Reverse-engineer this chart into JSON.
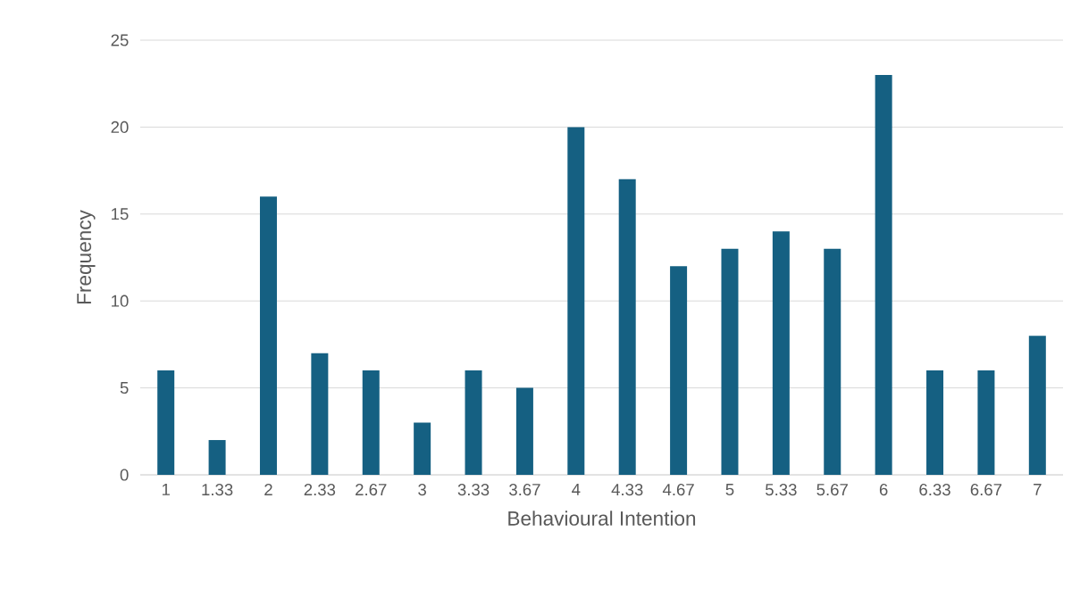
{
  "chart_data": {
    "type": "bar",
    "xlabel": "Behavioural Intention",
    "ylabel": "Frequency",
    "categories": [
      "1",
      "1.33",
      "2",
      "2.33",
      "2.67",
      "3",
      "3.33",
      "3.67",
      "4",
      "4.33",
      "4.67",
      "5",
      "5.33",
      "5.67",
      "6",
      "6.33",
      "6.67",
      "7"
    ],
    "values": [
      6,
      2,
      16,
      7,
      6,
      3,
      6,
      5,
      20,
      17,
      12,
      13,
      14,
      13,
      23,
      6,
      6,
      8
    ],
    "color": "#156082",
    "ylim": [
      0,
      25
    ],
    "yticks": [
      0,
      5,
      10,
      15,
      20,
      25
    ],
    "grid": "y"
  }
}
